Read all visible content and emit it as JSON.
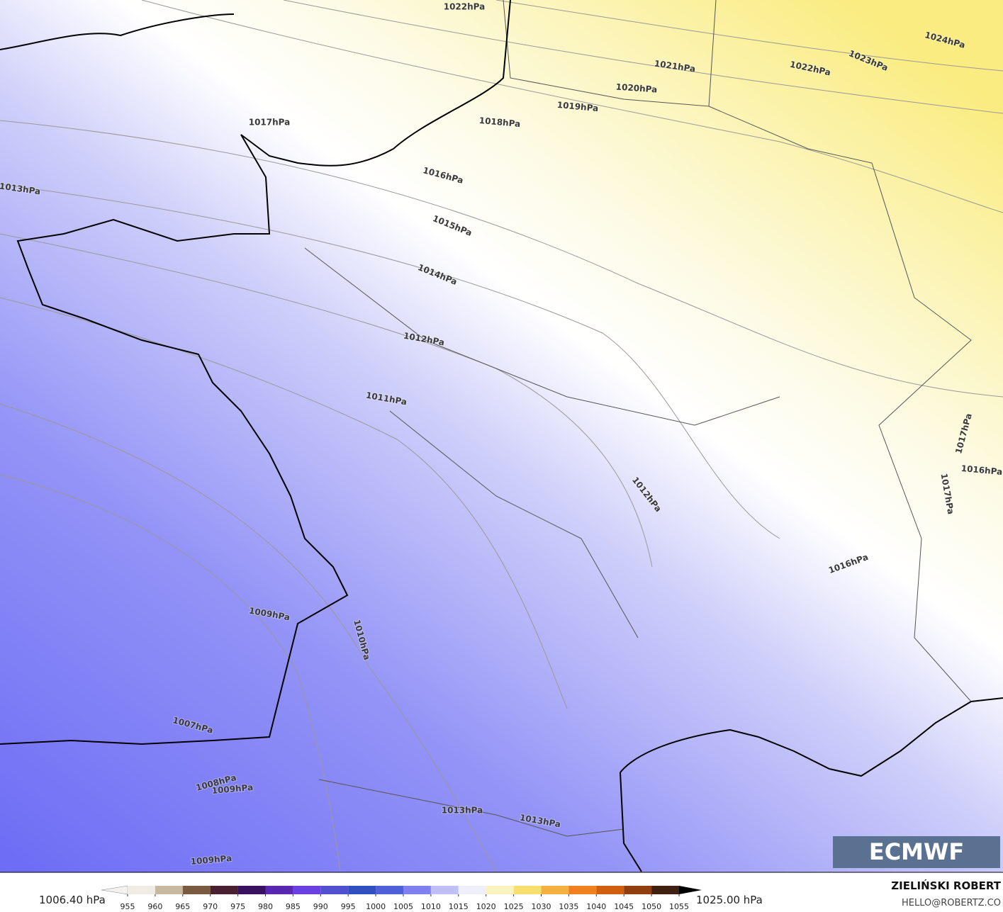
{
  "map": {
    "isobar_labels": [
      "1022hPa",
      "1024hPa",
      "1023hPa",
      "1022hPa",
      "1021hPa",
      "1020hPa",
      "1019hPa",
      "1018hPa",
      "1017hPa",
      "1016hPa",
      "1015hPa",
      "1013hPa",
      "1014hPa",
      "1012hPa",
      "1011hPa",
      "1012hPa",
      "1017hPa",
      "1016hPa",
      "1017hPa",
      "1016hPa",
      "1009hPa",
      "1010hPa",
      "1007hPa",
      "1008hPa",
      "1009hPa",
      "1013hPa",
      "1013hPa",
      "1009hPa"
    ],
    "logo": "ECMWF"
  },
  "colorbar": {
    "min_label": "1006.40 hPa",
    "max_label": "1025.00 hPa",
    "ticks": [
      955,
      960,
      965,
      970,
      975,
      980,
      985,
      990,
      995,
      1000,
      1005,
      1010,
      1015,
      1020,
      1025,
      1030,
      1035,
      1040,
      1045,
      1050,
      1055
    ]
  },
  "credits": {
    "author": "ZIELIŃSKI ROBERT",
    "email": "HELLO@ROBERTZ.CO"
  }
}
